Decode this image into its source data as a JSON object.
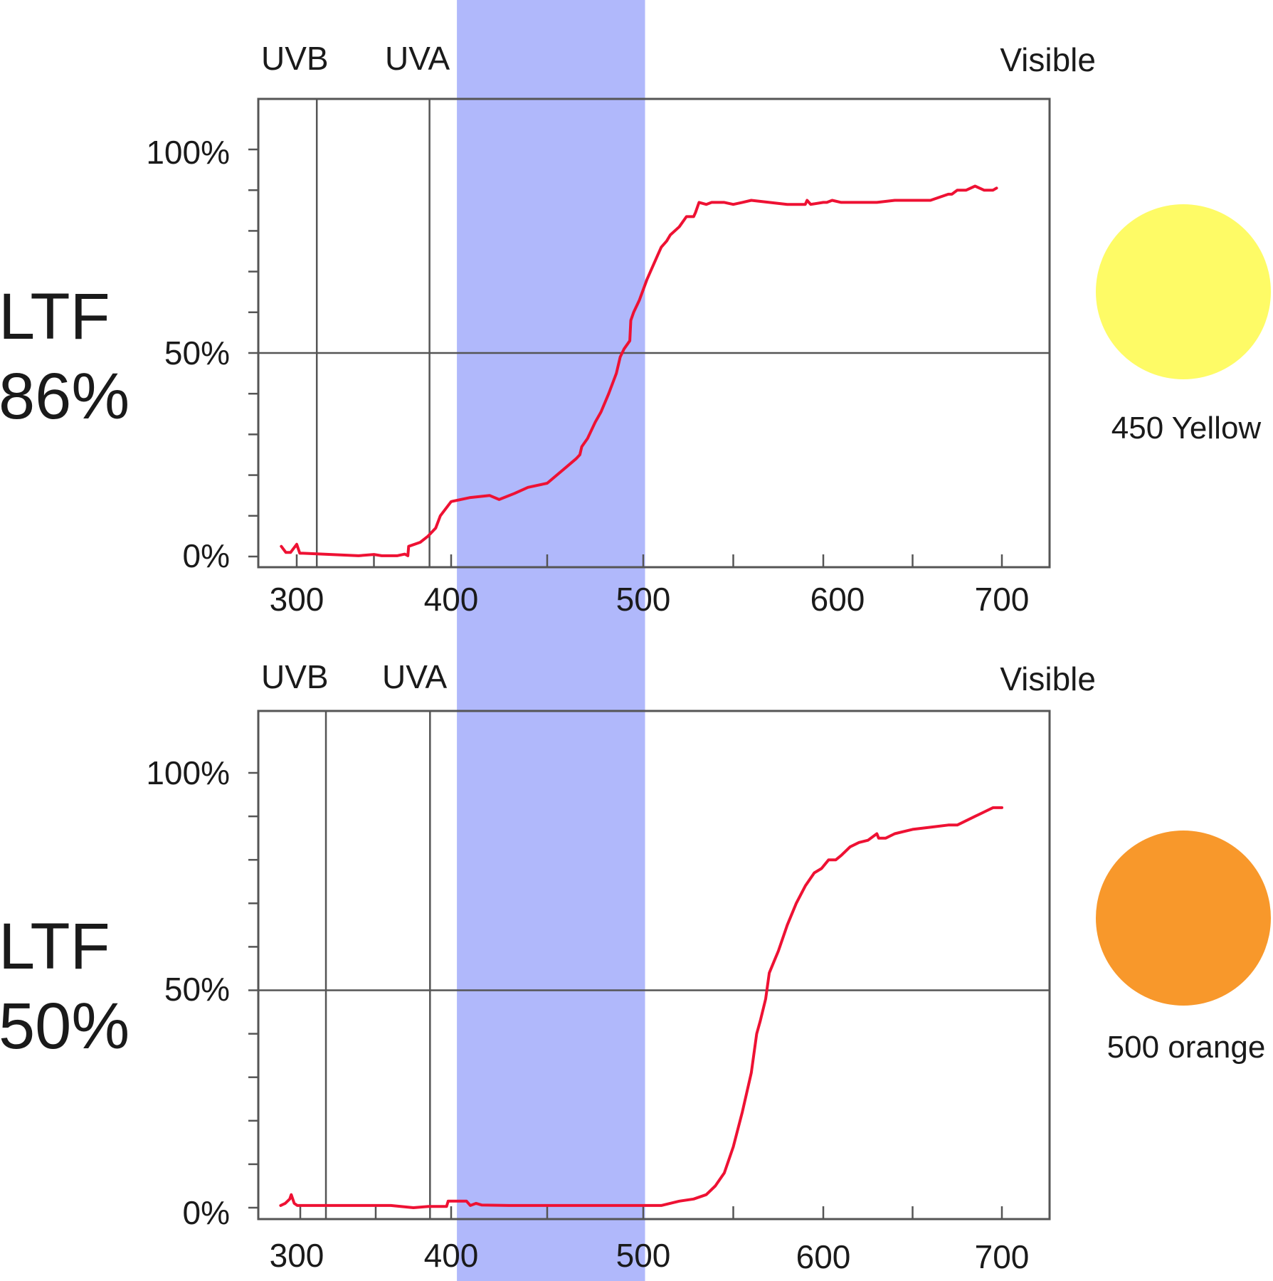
{
  "highlight_color": "#b0b8fb",
  "line_color": "#ee1133",
  "frame_color": "#555555",
  "chart_data": [
    {
      "type": "line",
      "ltf_label": "LTF",
      "ltf_value": "86%",
      "swatch_label": "450 Yellow",
      "swatch_color": "#fefb66",
      "region_labels": [
        "UVB",
        "UVA",
        "Visible"
      ],
      "x_ticks": [
        "300",
        "400",
        "500",
        "600",
        "700"
      ],
      "y_ticks": [
        "0%",
        "50%",
        "100%"
      ],
      "xlim": [
        280,
        730
      ],
      "ylim": [
        -1,
        116
      ],
      "divider_lines_x": [
        313,
        386
      ],
      "highlight_band_x": [
        403,
        501
      ],
      "x": [
        290,
        293,
        296,
        300,
        302,
        304,
        340,
        350,
        355,
        365,
        370,
        372,
        372.5,
        380,
        385,
        390,
        393,
        400,
        410,
        420,
        425,
        433,
        440,
        450,
        460,
        465,
        467,
        468,
        471,
        475,
        478,
        482,
        486,
        488,
        490,
        493,
        493.5,
        495,
        498,
        502,
        505,
        508,
        510,
        513,
        515,
        520,
        524,
        528,
        529,
        531,
        535,
        538,
        545,
        550,
        555,
        560,
        570,
        580,
        590,
        591,
        593,
        600,
        602,
        605,
        610,
        620,
        630,
        640,
        650,
        660,
        670,
        672,
        675,
        680,
        685,
        690,
        695,
        697
      ],
      "values": [
        2.5,
        1,
        1,
        3,
        0.8,
        0.8,
        0.2,
        0.5,
        0.2,
        0.2,
        0.6,
        0.2,
        2.5,
        3.5,
        5,
        7,
        10,
        13.5,
        14.5,
        15,
        14,
        15.5,
        17,
        18,
        22,
        24,
        25,
        27,
        29,
        33,
        35.5,
        40,
        45,
        49,
        51,
        53,
        58,
        60,
        63,
        68,
        71,
        74,
        76,
        77.5,
        79,
        81,
        83.5,
        83.5,
        84.5,
        87,
        86.5,
        87,
        87,
        86.5,
        87,
        87.5,
        87,
        86.5,
        86.5,
        87.5,
        86.5,
        87,
        87,
        87.5,
        87,
        87,
        87,
        87.5,
        87.5,
        87.5,
        89,
        89,
        90,
        90,
        91,
        90,
        90,
        90.5
      ]
    },
    {
      "type": "line",
      "ltf_label": "LTF",
      "ltf_value": "50%",
      "swatch_label": "500 orange",
      "swatch_color": "#f8982b",
      "region_labels": [
        "UVB",
        "UVA",
        "Visible"
      ],
      "x_ticks": [
        "300",
        "400",
        "500",
        "600",
        "700"
      ],
      "y_ticks": [
        "0%",
        "50%",
        "100%"
      ],
      "xlim": [
        280,
        730
      ],
      "ylim": [
        -1,
        116
      ],
      "divider_lines_x": [
        317,
        386
      ],
      "highlight_band_x": [
        403,
        501
      ],
      "x": [
        287,
        290,
        293,
        294,
        296,
        298,
        330,
        360,
        375,
        385,
        395,
        397,
        398,
        408,
        410,
        413,
        416,
        430,
        470,
        495,
        505,
        510,
        520,
        528,
        535,
        540,
        545,
        550,
        555,
        560,
        563,
        565,
        568,
        570,
        573,
        575,
        580,
        585,
        590,
        595,
        599,
        603,
        607,
        610,
        615,
        620,
        625,
        630,
        631,
        635,
        640,
        650,
        660,
        670,
        675,
        680,
        685,
        690,
        695,
        700
      ],
      "values": [
        0.5,
        1,
        2,
        3,
        1,
        0.5,
        0.5,
        0.5,
        0,
        0.3,
        0.3,
        0.3,
        1.5,
        1.5,
        0.5,
        1,
        0.6,
        0.5,
        0.5,
        0.5,
        0.5,
        0.5,
        1.5,
        2,
        3,
        5,
        8,
        14,
        22,
        31,
        40,
        43,
        48,
        54,
        57,
        59,
        65,
        70,
        74,
        77,
        78,
        80,
        80,
        81,
        83,
        84,
        84.5,
        86,
        85,
        85,
        86,
        87,
        87.5,
        88,
        88,
        89,
        90,
        91,
        92,
        92
      ]
    }
  ]
}
